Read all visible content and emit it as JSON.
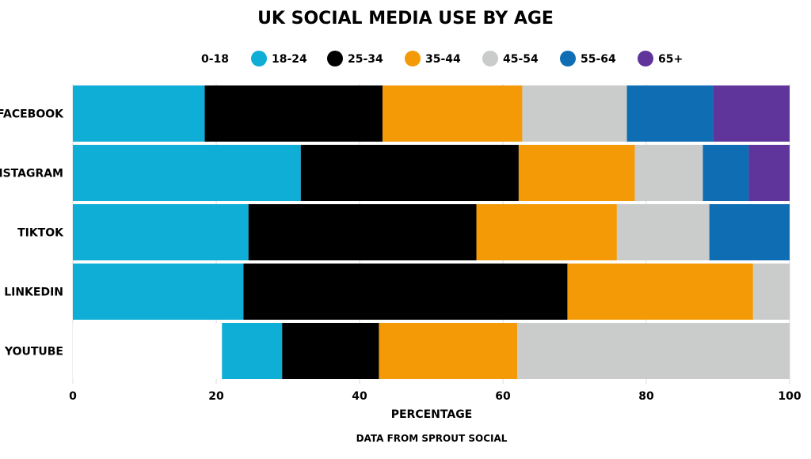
{
  "chart_data": {
    "type": "bar",
    "orientation": "horizontal",
    "stacked": true,
    "title": "UK SOCIAL MEDIA USE BY AGE",
    "xlabel": "PERCENTAGE",
    "ylabel": "",
    "source": "DATA FROM SPROUT SOCIAL",
    "xlim": [
      0,
      100
    ],
    "xticks": [
      0,
      20,
      40,
      60,
      80,
      100
    ],
    "legend_position": "top",
    "grid": true,
    "categories": [
      "FACEBOOK",
      "INSTAGRAM",
      "TIKTOK",
      "LINKEDIN",
      "YOUTUBE"
    ],
    "series": [
      {
        "name": "0-18",
        "color": "#ffffff",
        "values": [
          0,
          0,
          0,
          0,
          20.8
        ]
      },
      {
        "name": "18-24",
        "color": "#0eaed6",
        "values": [
          18.4,
          31.8,
          24.5,
          23.8,
          8.4
        ]
      },
      {
        "name": "25-34",
        "color": "#000000",
        "values": [
          24.8,
          30.4,
          31.8,
          45.2,
          13.5
        ]
      },
      {
        "name": "35-44",
        "color": "#f49a07",
        "values": [
          19.5,
          16.2,
          19.6,
          25.9,
          19.3
        ]
      },
      {
        "name": "45-54",
        "color": "#c9cccb",
        "values": [
          14.6,
          9.5,
          12.9,
          5.1,
          38.0
        ]
      },
      {
        "name": "55-64",
        "color": "#0f6db4",
        "values": [
          12.0,
          6.4,
          11.2,
          0,
          0
        ]
      },
      {
        "name": "65+",
        "color": "#5f349b",
        "values": [
          10.7,
          5.7,
          0,
          0,
          0
        ]
      }
    ]
  }
}
